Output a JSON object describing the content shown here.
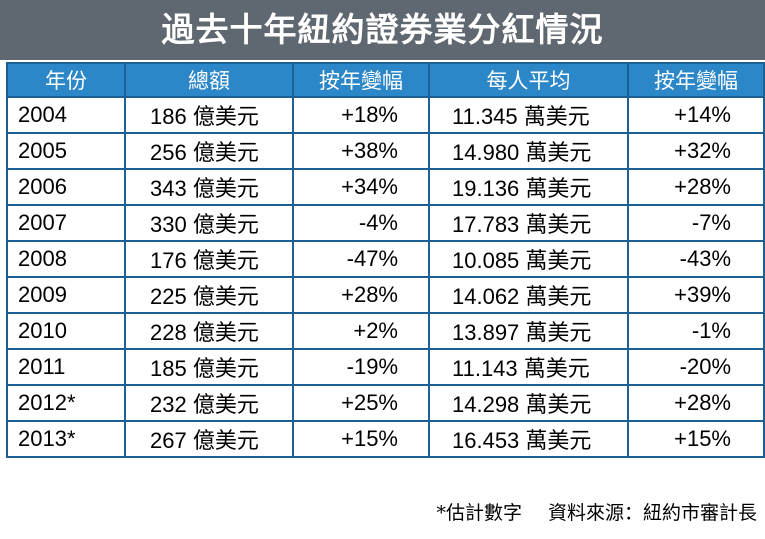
{
  "title": "過去十年紐約證券業分紅情況",
  "columns": [
    "年份",
    "總額",
    "按年變幅",
    "每人平均",
    "按年變幅"
  ],
  "rows": [
    {
      "year": "2004",
      "total": "186 億美元",
      "total_change": "+18%",
      "average": "11.345 萬美元",
      "average_change": "+14%"
    },
    {
      "year": "2005",
      "total": "256 億美元",
      "total_change": "+38%",
      "average": "14.980 萬美元",
      "average_change": "+32%"
    },
    {
      "year": "2006",
      "total": "343 億美元",
      "total_change": "+34%",
      "average": "19.136 萬美元",
      "average_change": "+28%"
    },
    {
      "year": "2007",
      "total": "330 億美元",
      "total_change": "-4%",
      "average": "17.783 萬美元",
      "average_change": "-7%"
    },
    {
      "year": "2008",
      "total": "176 億美元",
      "total_change": "-47%",
      "average": "10.085 萬美元",
      "average_change": "-43%"
    },
    {
      "year": "2009",
      "total": "225 億美元",
      "total_change": "+28%",
      "average": "14.062 萬美元",
      "average_change": "+39%"
    },
    {
      "year": "2010",
      "total": "228 億美元",
      "total_change": "+2%",
      "average": "13.897 萬美元",
      "average_change": "-1%"
    },
    {
      "year": "2011",
      "total": "185 億美元",
      "total_change": "-19%",
      "average": "11.143 萬美元",
      "average_change": "-20%"
    },
    {
      "year": "2012*",
      "total": "232 億美元",
      "total_change": "+25%",
      "average": "14.298 萬美元",
      "average_change": "+28%"
    },
    {
      "year": "2013*",
      "total": "267 億美元",
      "total_change": "+15%",
      "average": "16.453 萬美元",
      "average_change": "+15%"
    }
  ],
  "footnote": {
    "estimate": "*估計數字",
    "source": "資料來源：紐約市審計長"
  }
}
